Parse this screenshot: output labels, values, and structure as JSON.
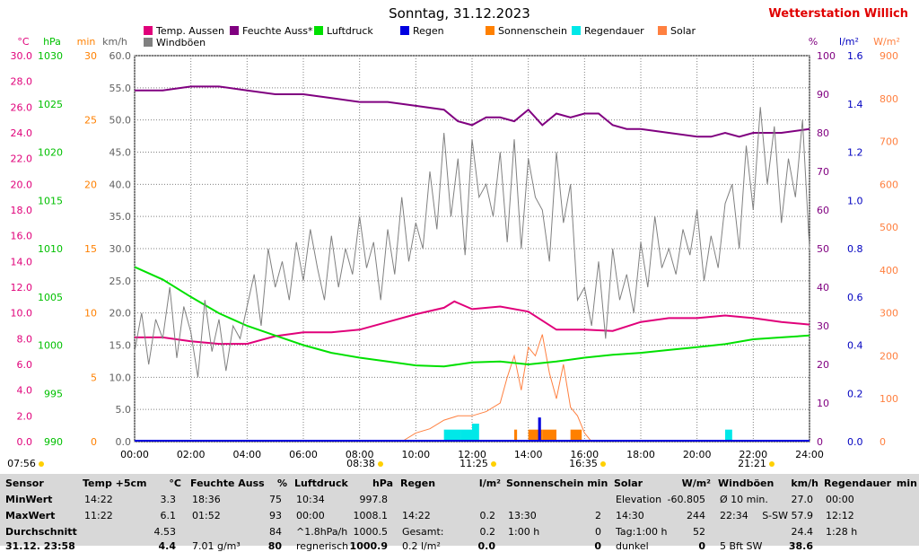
{
  "title": "Sonntag, 31.12.2023",
  "brand": "Wetterstation Willich",
  "colors": {
    "temp": "#e0007a",
    "humidity": "#800080",
    "pressure": "#00e000",
    "rain": "#0000e0",
    "sunshine": "#ff8000",
    "raindur": "#00e8e8",
    "solar": "#ff8040",
    "gust": "#808080",
    "brand": "#e00000"
  },
  "legend": [
    {
      "label": "Temp. Aussen",
      "color": "#e0007a"
    },
    {
      "label": "Feuchte Auss*",
      "color": "#800080"
    },
    {
      "label": "Luftdruck",
      "color": "#00e000"
    },
    {
      "label": "Regen",
      "color": "#0000e0"
    },
    {
      "label": "Sonnenschein",
      "color": "#ff8000"
    },
    {
      "label": "Regendauer",
      "color": "#00e8e8"
    },
    {
      "label": "Solar",
      "color": "#ff8040"
    },
    {
      "label": "Windböen",
      "color": "#808080"
    }
  ],
  "chart_data": {
    "type": "line",
    "x_ticks": [
      "00:00",
      "02:00",
      "04:00",
      "06:00",
      "08:00",
      "10:00",
      "12:00",
      "14:00",
      "16:00",
      "18:00",
      "20:00",
      "22:00",
      "24:00"
    ],
    "axes_left": [
      {
        "unit": "°C",
        "color": "#e0007a",
        "ticks": [
          "30.0",
          "28.0",
          "26.0",
          "24.0",
          "22.0",
          "20.0",
          "18.0",
          "16.0",
          "14.0",
          "12.0",
          "10.0",
          "8.0",
          "6.0",
          "4.0",
          "2.0",
          "0.0"
        ]
      },
      {
        "unit": "hPa",
        "color": "#00c000",
        "ticks": [
          "1030",
          "1025",
          "1020",
          "1015",
          "1010",
          "1005",
          "1000",
          "995",
          "990"
        ]
      },
      {
        "unit": "min",
        "color": "#ff8000",
        "ticks": [
          "30",
          "25",
          "20",
          "15",
          "10",
          "5",
          "0"
        ]
      },
      {
        "unit": "km/h",
        "color": "#606060",
        "ticks": [
          "60.0",
          "55.0",
          "50.0",
          "45.0",
          "40.0",
          "35.0",
          "30.0",
          "25.0",
          "20.0",
          "15.0",
          "10.0",
          "5.0",
          "0.0"
        ]
      }
    ],
    "axes_right": [
      {
        "unit": "%",
        "color": "#800080",
        "ticks": [
          "100",
          "90",
          "80",
          "70",
          "60",
          "50",
          "40",
          "30",
          "20",
          "10",
          "0"
        ]
      },
      {
        "unit": "l/m²",
        "color": "#0000c0",
        "ticks": [
          "1.6",
          "1.4",
          "1.2",
          "1.0",
          "0.8",
          "0.6",
          "0.4",
          "0.2",
          "0.0"
        ]
      },
      {
        "unit": "W/m²",
        "color": "#ff8040",
        "ticks": [
          "900",
          "800",
          "700",
          "600",
          "500",
          "400",
          "300",
          "200",
          "100",
          "0"
        ]
      }
    ],
    "series": [
      {
        "name": "Temp. Aussen",
        "unit": "°C",
        "ylim": [
          0,
          30
        ],
        "x": [
          0,
          1,
          2,
          3,
          4,
          5,
          6,
          7,
          8,
          9,
          10,
          11,
          11.37,
          12,
          13,
          14,
          15,
          16,
          17,
          18,
          19,
          20,
          21,
          22,
          23,
          24
        ],
        "y": [
          8.1,
          8.1,
          7.8,
          7.6,
          7.6,
          8.2,
          8.5,
          8.5,
          8.7,
          9.3,
          9.9,
          10.4,
          10.9,
          10.3,
          10.5,
          10.1,
          8.7,
          8.7,
          8.6,
          9.3,
          9.6,
          9.6,
          9.8,
          9.6,
          9.3,
          9.1
        ]
      },
      {
        "name": "Feuchte Auss*",
        "unit": "%",
        "ylim": [
          0,
          100
        ],
        "x": [
          0,
          1,
          2,
          3,
          4,
          5,
          6,
          7,
          8,
          9,
          10,
          11,
          11.5,
          12,
          12.5,
          13,
          13.5,
          14,
          14.5,
          15,
          15.5,
          16,
          16.5,
          17,
          17.5,
          18,
          19,
          20,
          20.5,
          21,
          21.5,
          22,
          23,
          24
        ],
        "y": [
          91,
          91,
          92,
          92,
          91,
          90,
          90,
          89,
          88,
          88,
          87,
          86,
          83,
          82,
          84,
          84,
          83,
          86,
          82,
          85,
          84,
          85,
          85,
          82,
          81,
          81,
          80,
          79,
          79,
          80,
          79,
          80,
          80,
          81
        ]
      },
      {
        "name": "Luftdruck",
        "unit": "hPa",
        "ylim": [
          990,
          1030
        ],
        "x": [
          0,
          1,
          2,
          3,
          4,
          5,
          6,
          7,
          8,
          9,
          10,
          11,
          12,
          13,
          14,
          15,
          16,
          17,
          18,
          19,
          20,
          21,
          22,
          23,
          24
        ],
        "y": [
          1008.1,
          1006.8,
          1005.0,
          1003.3,
          1002.0,
          1001.0,
          1000.0,
          999.2,
          998.7,
          998.3,
          997.9,
          997.8,
          998.2,
          998.3,
          998.0,
          998.3,
          998.7,
          999.0,
          999.2,
          999.5,
          999.8,
          1000.1,
          1000.6,
          1000.8,
          1001.0
        ]
      },
      {
        "name": "Windböen",
        "unit": "km/h",
        "ylim": [
          0,
          60
        ],
        "x": [
          0,
          0.25,
          0.5,
          0.75,
          1,
          1.25,
          1.5,
          1.75,
          2,
          2.25,
          2.5,
          2.75,
          3,
          3.25,
          3.5,
          3.75,
          4,
          4.25,
          4.5,
          4.75,
          5,
          5.25,
          5.5,
          5.75,
          6,
          6.25,
          6.5,
          6.75,
          7,
          7.25,
          7.5,
          7.75,
          8,
          8.25,
          8.5,
          8.75,
          9,
          9.25,
          9.5,
          9.75,
          10,
          10.25,
          10.5,
          10.75,
          11,
          11.25,
          11.5,
          11.75,
          12,
          12.25,
          12.5,
          12.75,
          13,
          13.25,
          13.5,
          13.75,
          14,
          14.25,
          14.5,
          14.75,
          15,
          15.25,
          15.5,
          15.75,
          16,
          16.25,
          16.5,
          16.75,
          17,
          17.25,
          17.5,
          17.75,
          18,
          18.25,
          18.5,
          18.75,
          19,
          19.25,
          19.5,
          19.75,
          20,
          20.25,
          20.5,
          20.75,
          21,
          21.25,
          21.5,
          21.75,
          22,
          22.25,
          22.5,
          22.75,
          23,
          23.25,
          23.5,
          23.75,
          24
        ],
        "y": [
          14,
          20,
          12,
          19,
          16,
          24,
          13,
          21,
          17,
          10,
          22,
          14,
          19,
          11,
          18,
          16,
          21,
          26,
          18,
          30,
          24,
          28,
          22,
          31,
          25,
          33,
          27,
          22,
          32,
          24,
          30,
          26,
          35,
          27,
          31,
          22,
          33,
          26,
          38,
          28,
          34,
          30,
          42,
          33,
          48,
          35,
          44,
          29,
          47,
          38,
          40,
          35,
          45,
          31,
          47,
          30,
          44,
          38,
          36,
          28,
          45,
          34,
          40,
          22,
          24,
          18,
          28,
          16,
          30,
          22,
          26,
          20,
          31,
          24,
          35,
          27,
          30,
          26,
          33,
          29,
          36,
          25,
          32,
          27,
          37,
          40,
          30,
          46,
          36,
          52,
          40,
          49,
          34,
          44,
          38,
          50,
          30
        ]
      }
    ],
    "bars": {
      "Regendauer": {
        "unit": "min",
        "x_start": [
          11.0,
          11.6,
          12.0
        ],
        "x_end": [
          11.6,
          12.0,
          12.25
        ],
        "y": [
          2,
          2,
          3
        ]
      },
      "Regendauer_2": {
        "unit": "min",
        "x_start": [
          21.0
        ],
        "x_end": [
          21.25
        ],
        "y": [
          2
        ]
      },
      "Sonnenschein": {
        "unit": "min",
        "x_start": [
          13.5,
          14.0,
          14.5,
          15.5
        ],
        "x_end": [
          13.6,
          14.5,
          15.0,
          15.9
        ],
        "y": [
          2,
          2,
          2,
          2
        ]
      },
      "Regen": {
        "unit": "l/m²",
        "x_start": [
          14.35
        ],
        "x_end": [
          14.45
        ],
        "y": [
          0.2
        ]
      }
    },
    "solar": {
      "unit": "W/m²",
      "ylim": [
        0,
        900
      ],
      "x": [
        9.5,
        10.0,
        10.5,
        11.0,
        11.5,
        12.0,
        12.5,
        13.0,
        13.25,
        13.5,
        13.75,
        14.0,
        14.25,
        14.5,
        14.75,
        15.0,
        15.25,
        15.5,
        15.75,
        16.0,
        16.25
      ],
      "y": [
        0,
        20,
        30,
        50,
        60,
        60,
        70,
        90,
        150,
        200,
        120,
        220,
        200,
        250,
        160,
        100,
        180,
        80,
        60,
        20,
        0
      ]
    }
  },
  "sun_markers": [
    {
      "label": "07:56",
      "sub": ""
    },
    {
      "label": "08:38",
      "sub": ""
    },
    {
      "label": "11:25",
      "sub": ""
    },
    {
      "label": "16:35",
      "sub": ""
    },
    {
      "label": "21:21",
      "sub": ""
    }
  ],
  "table": {
    "sensor": {
      "h": "Sensor",
      "rows": [
        "MinWert",
        "MaxWert",
        "Durchschnitt",
        "31.12. 23:58"
      ]
    },
    "temp": {
      "h": "Temp +5cm",
      "u": "°C",
      "c1": [
        "14:22",
        "11:22",
        "",
        ""
      ],
      "c2": [
        "3.3",
        "6.1",
        "4.53",
        "4.4"
      ]
    },
    "feuchte": {
      "h": "Feuchte Auss",
      "u": "%",
      "c1": [
        "18:36",
        "01:52",
        "",
        "7.01 g/m³"
      ],
      "c2": [
        "75",
        "93",
        "84",
        "80"
      ]
    },
    "luftdruck": {
      "h": "Luftdruck",
      "u": "hPa",
      "c1": [
        "10:34",
        "00:00",
        "^1.8hPa/h",
        "regnerisch"
      ],
      "c2": [
        "997.8",
        "1008.1",
        "1000.5",
        "1000.9"
      ]
    },
    "regen": {
      "h": "Regen",
      "u": "l/m²",
      "c1": [
        "",
        "14:22",
        "Gesamt:",
        "0.2 l/m²"
      ],
      "c2": [
        "",
        "0.2",
        "0.2",
        "0.0"
      ]
    },
    "sonne": {
      "h": "Sonnenschein min",
      "c1": [
        "",
        "13:30",
        "1:00 h",
        ""
      ],
      "c2": [
        "",
        "2",
        "0",
        "0"
      ]
    },
    "solar": {
      "h": "Solar",
      "u": "W/m²",
      "c1": [
        "Elevation",
        "14:30",
        "Tag:1:00 h",
        "dunkel"
      ],
      "c2": [
        "-60.805",
        "244",
        "52",
        "0"
      ]
    },
    "wind": {
      "h": "Windböen",
      "u": "km/h",
      "c1": [
        "Ø 10 min.",
        "22:34",
        "",
        "5 Bft SW"
      ],
      "c2": [
        "27.0",
        "S-SW 57.9",
        "24.4",
        "38.6"
      ]
    },
    "regendauer": {
      "h": "Regendauer",
      "u": "min",
      "c1": [
        "00:00",
        "12:12",
        "1:28 h",
        ""
      ],
      "c2": [
        "",
        "",
        "",
        ""
      ]
    }
  }
}
